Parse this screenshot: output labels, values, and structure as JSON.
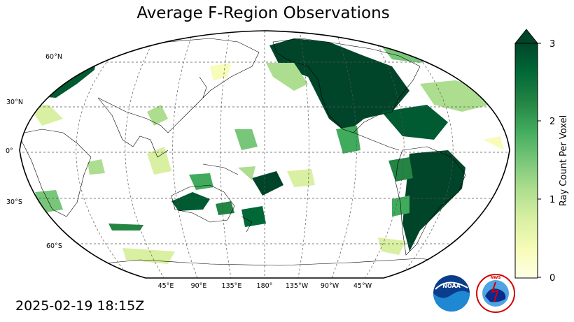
{
  "title": "Average F-Region Observations",
  "timestamp": "2025-02-19 18:15Z",
  "map": {
    "projection": "Robinson, central meridian 180°",
    "lat_labels": [
      "60°N",
      "30°N",
      "0°",
      "30°S",
      "60°S"
    ],
    "lon_labels": [
      "45°E",
      "90°E",
      "135°E",
      "180°",
      "135°W",
      "90°W",
      "45°W"
    ],
    "gridlines": "dashed"
  },
  "colorbar": {
    "label": "Ray Count Per Voxel",
    "ticks": [
      "0",
      "1",
      "2",
      "3"
    ],
    "min": 0,
    "max": 3,
    "extend": "max",
    "colormap": "YlGn",
    "colors": [
      "#ffffe5",
      "#f7fcb9",
      "#d9f0a3",
      "#addd8e",
      "#78c679",
      "#41ab5d",
      "#238443",
      "#006837",
      "#004529"
    ]
  },
  "logos": {
    "noaa": "NOAA",
    "nws": "NATIONAL WEATHER SERVICE"
  }
}
